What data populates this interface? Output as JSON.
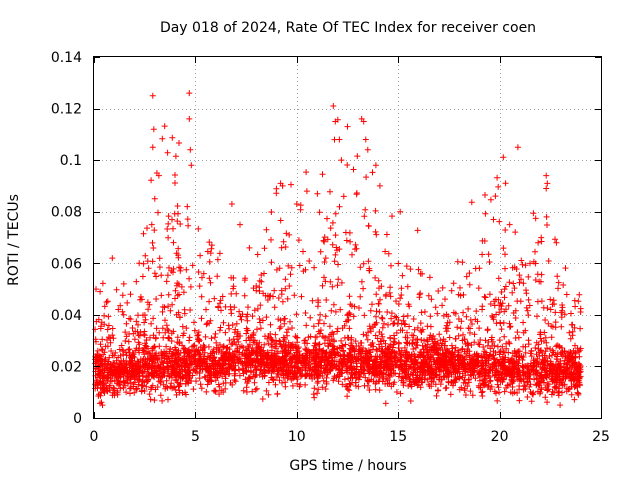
{
  "chart_data": {
    "type": "scatter",
    "title": "Day 018 of 2024, Rate Of TEC Index for receiver coen",
    "xlabel": "GPS time / hours",
    "ylabel": "ROTI / TECUs",
    "xlim": [
      0,
      25
    ],
    "ylim": [
      0,
      0.14
    ],
    "grid": true,
    "marker": "+",
    "xticks": [
      0,
      5,
      10,
      15,
      20,
      25
    ],
    "xtick_labels": [
      "0",
      "5",
      "10",
      "15",
      "20",
      "25"
    ],
    "yticks": [
      0,
      0.02,
      0.04,
      0.06,
      0.08,
      0.1,
      0.12,
      0.14
    ],
    "ytick_labels": [
      "0",
      "0.02",
      "0.04",
      "0.06",
      "0.08",
      "0.1",
      "0.12",
      "0.14"
    ],
    "series": [
      {
        "name": "ROTI",
        "color": "#ff0000",
        "baseline_by_hour": [
          0.016,
          0.017,
          0.017,
          0.019,
          0.02,
          0.02,
          0.02,
          0.021,
          0.021,
          0.02,
          0.02,
          0.021,
          0.022,
          0.021,
          0.021,
          0.021,
          0.02,
          0.02,
          0.02,
          0.019,
          0.019,
          0.017,
          0.017,
          0.017,
          0.017
        ],
        "upper_envelope_by_hour": [
          0.05,
          0.062,
          0.05,
          0.125,
          0.126,
          0.06,
          0.083,
          0.075,
          0.065,
          0.091,
          0.083,
          0.12,
          0.116,
          0.115,
          0.08,
          0.072,
          0.06,
          0.055,
          0.06,
          0.077,
          0.105,
          0.068,
          0.093,
          0.068,
          0.05
        ],
        "outliers": [
          [
            0.9,
            0.062
          ],
          [
            2.9,
            0.125
          ],
          [
            2.95,
            0.112
          ],
          [
            2.9,
            0.105
          ],
          [
            3.1,
            0.095
          ],
          [
            3.2,
            0.094
          ],
          [
            3.0,
            0.085
          ],
          [
            2.85,
            0.075
          ],
          [
            4.7,
            0.126
          ],
          [
            4.7,
            0.116
          ],
          [
            4.75,
            0.104
          ],
          [
            4.8,
            0.098
          ],
          [
            4.6,
            0.082
          ],
          [
            6.8,
            0.083
          ],
          [
            9.2,
            0.091
          ],
          [
            9.3,
            0.09
          ],
          [
            10.0,
            0.083
          ],
          [
            10.5,
            0.088
          ],
          [
            11.8,
            0.121
          ],
          [
            11.9,
            0.115
          ],
          [
            12.1,
            0.108
          ],
          [
            12.5,
            0.113
          ],
          [
            12.2,
            0.1
          ],
          [
            13.2,
            0.116
          ],
          [
            13.3,
            0.115
          ],
          [
            13.4,
            0.108
          ],
          [
            13.5,
            0.104
          ],
          [
            13.9,
            0.098
          ],
          [
            14.1,
            0.09
          ],
          [
            15.1,
            0.08
          ],
          [
            19.7,
            0.077
          ],
          [
            20.5,
            0.075
          ],
          [
            20.9,
            0.105
          ],
          [
            22.3,
            0.094
          ],
          [
            22.35,
            0.091
          ],
          [
            22.3,
            0.089
          ],
          [
            22.8,
            0.068
          ],
          [
            21.9,
            0.068
          ],
          [
            0.1,
            0.05
          ],
          [
            0.3,
            0.049
          ],
          [
            1.8,
            0.048
          ],
          [
            8.5,
            0.073
          ],
          [
            7.2,
            0.075
          ]
        ]
      }
    ]
  }
}
